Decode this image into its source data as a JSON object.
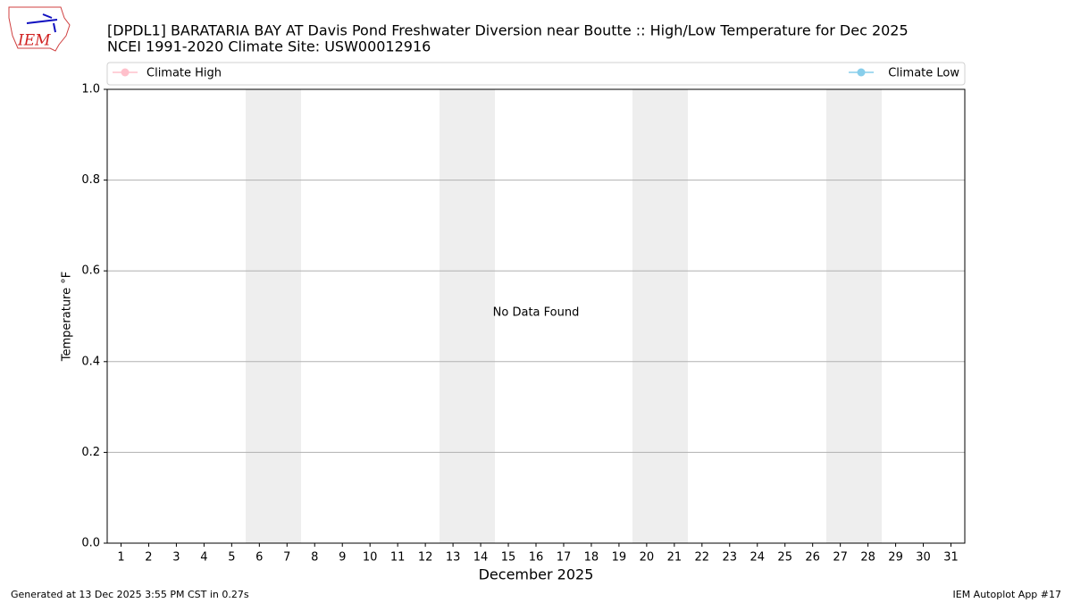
{
  "logo": "IEM",
  "footer": {
    "left": "Generated at 13 Dec 2025 3:55 PM CST in 0.27s",
    "right": "IEM Autoplot App #17"
  },
  "chart_data": {
    "type": "line",
    "title": "[DPDL1] BARATARIA BAY  AT Davis Pond Freshwater Diversion near Boutte :: High/Low Temperature for Dec 2025",
    "subtitle": "NCEI 1991-2020 Climate Site: USW00012916",
    "x_label": "December 2025",
    "y_label": "Temperature °F",
    "annotation": "No Data Found",
    "categories": [
      "1",
      "2",
      "3",
      "4",
      "5",
      "6",
      "7",
      "8",
      "9",
      "10",
      "11",
      "12",
      "13",
      "14",
      "15",
      "16",
      "17",
      "18",
      "19",
      "20",
      "21",
      "22",
      "23",
      "24",
      "25",
      "26",
      "27",
      "28",
      "29",
      "30",
      "31"
    ],
    "series": [
      {
        "name": "Climate High",
        "color": "#ffc0cb",
        "values": [
          null,
          null,
          null,
          null,
          null,
          null,
          null,
          null,
          null,
          null,
          null,
          null,
          null,
          null,
          null,
          null,
          null,
          null,
          null,
          null,
          null,
          null,
          null,
          null,
          null,
          null,
          null,
          null,
          null,
          null,
          null
        ]
      },
      {
        "name": "Climate Low",
        "color": "#87ceeb",
        "values": [
          null,
          null,
          null,
          null,
          null,
          null,
          null,
          null,
          null,
          null,
          null,
          null,
          null,
          null,
          null,
          null,
          null,
          null,
          null,
          null,
          null,
          null,
          null,
          null,
          null,
          null,
          null,
          null,
          null,
          null,
          null
        ]
      }
    ],
    "ylim": [
      0,
      1
    ],
    "yticks": [
      {
        "value": 0,
        "label": "0.0"
      },
      {
        "value": 0.2,
        "label": "0.2"
      },
      {
        "value": 0.4,
        "label": "0.4"
      },
      {
        "value": 0.6,
        "label": "0.6"
      },
      {
        "value": 0.8,
        "label": "0.8"
      },
      {
        "value": 1,
        "label": "1.0"
      }
    ],
    "grid": true
  }
}
